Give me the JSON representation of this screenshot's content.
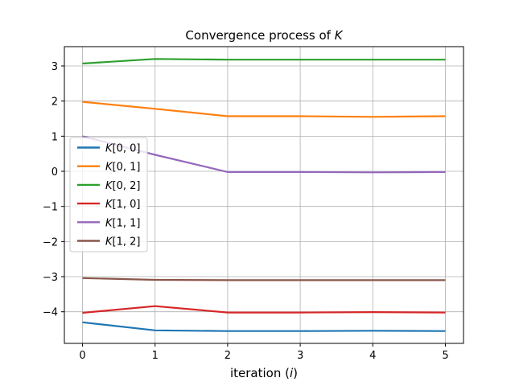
{
  "chart_data": {
    "type": "line",
    "title_text": "Convergence process of ",
    "title_var": "K",
    "xlabel_text": "iteration (",
    "xlabel_var": "i",
    "xlabel_end": ")",
    "x": [
      0,
      1,
      2,
      3,
      4,
      5
    ],
    "xlim": [
      -0.25,
      5.25
    ],
    "ylim": [
      -4.9,
      3.55
    ],
    "xticks": [
      0,
      1,
      2,
      3,
      4,
      5
    ],
    "yticks": [
      -4,
      -3,
      -2,
      -1,
      0,
      1,
      2,
      3
    ],
    "ytick_labels": [
      "−4",
      "−3",
      "−2",
      "−1",
      "0",
      "1",
      "2",
      "3"
    ],
    "grid": true,
    "legend_position": "center-left",
    "series": [
      {
        "name": "K[0, 0]",
        "var": "K",
        "idx": "[0, 0]",
        "color": "#1f77b4",
        "values": [
          -4.3,
          -4.53,
          -4.55,
          -4.55,
          -4.54,
          -4.55
        ]
      },
      {
        "name": "K[0, 1]",
        "var": "K",
        "idx": "[0, 1]",
        "color": "#ff7f0e",
        "values": [
          1.98,
          1.78,
          1.57,
          1.57,
          1.55,
          1.57
        ]
      },
      {
        "name": "K[0, 2]",
        "var": "K",
        "idx": "[0, 2]",
        "color": "#2ca02c",
        "values": [
          3.07,
          3.2,
          3.18,
          3.18,
          3.18,
          3.18
        ]
      },
      {
        "name": "K[1, 0]",
        "var": "K",
        "idx": "[1, 0]",
        "color": "#d62728",
        "values": [
          -4.03,
          -3.84,
          -4.02,
          -4.02,
          -4.01,
          -4.02
        ]
      },
      {
        "name": "K[1, 1]",
        "var": "K",
        "idx": "[1, 1]",
        "color": "#9467bd",
        "values": [
          1.0,
          0.47,
          -0.02,
          -0.02,
          -0.03,
          -0.02
        ]
      },
      {
        "name": "K[1, 2]",
        "var": "K",
        "idx": "[1, 2]",
        "color": "#8c564b",
        "values": [
          -3.04,
          -3.09,
          -3.1,
          -3.1,
          -3.1,
          -3.1
        ]
      }
    ]
  }
}
